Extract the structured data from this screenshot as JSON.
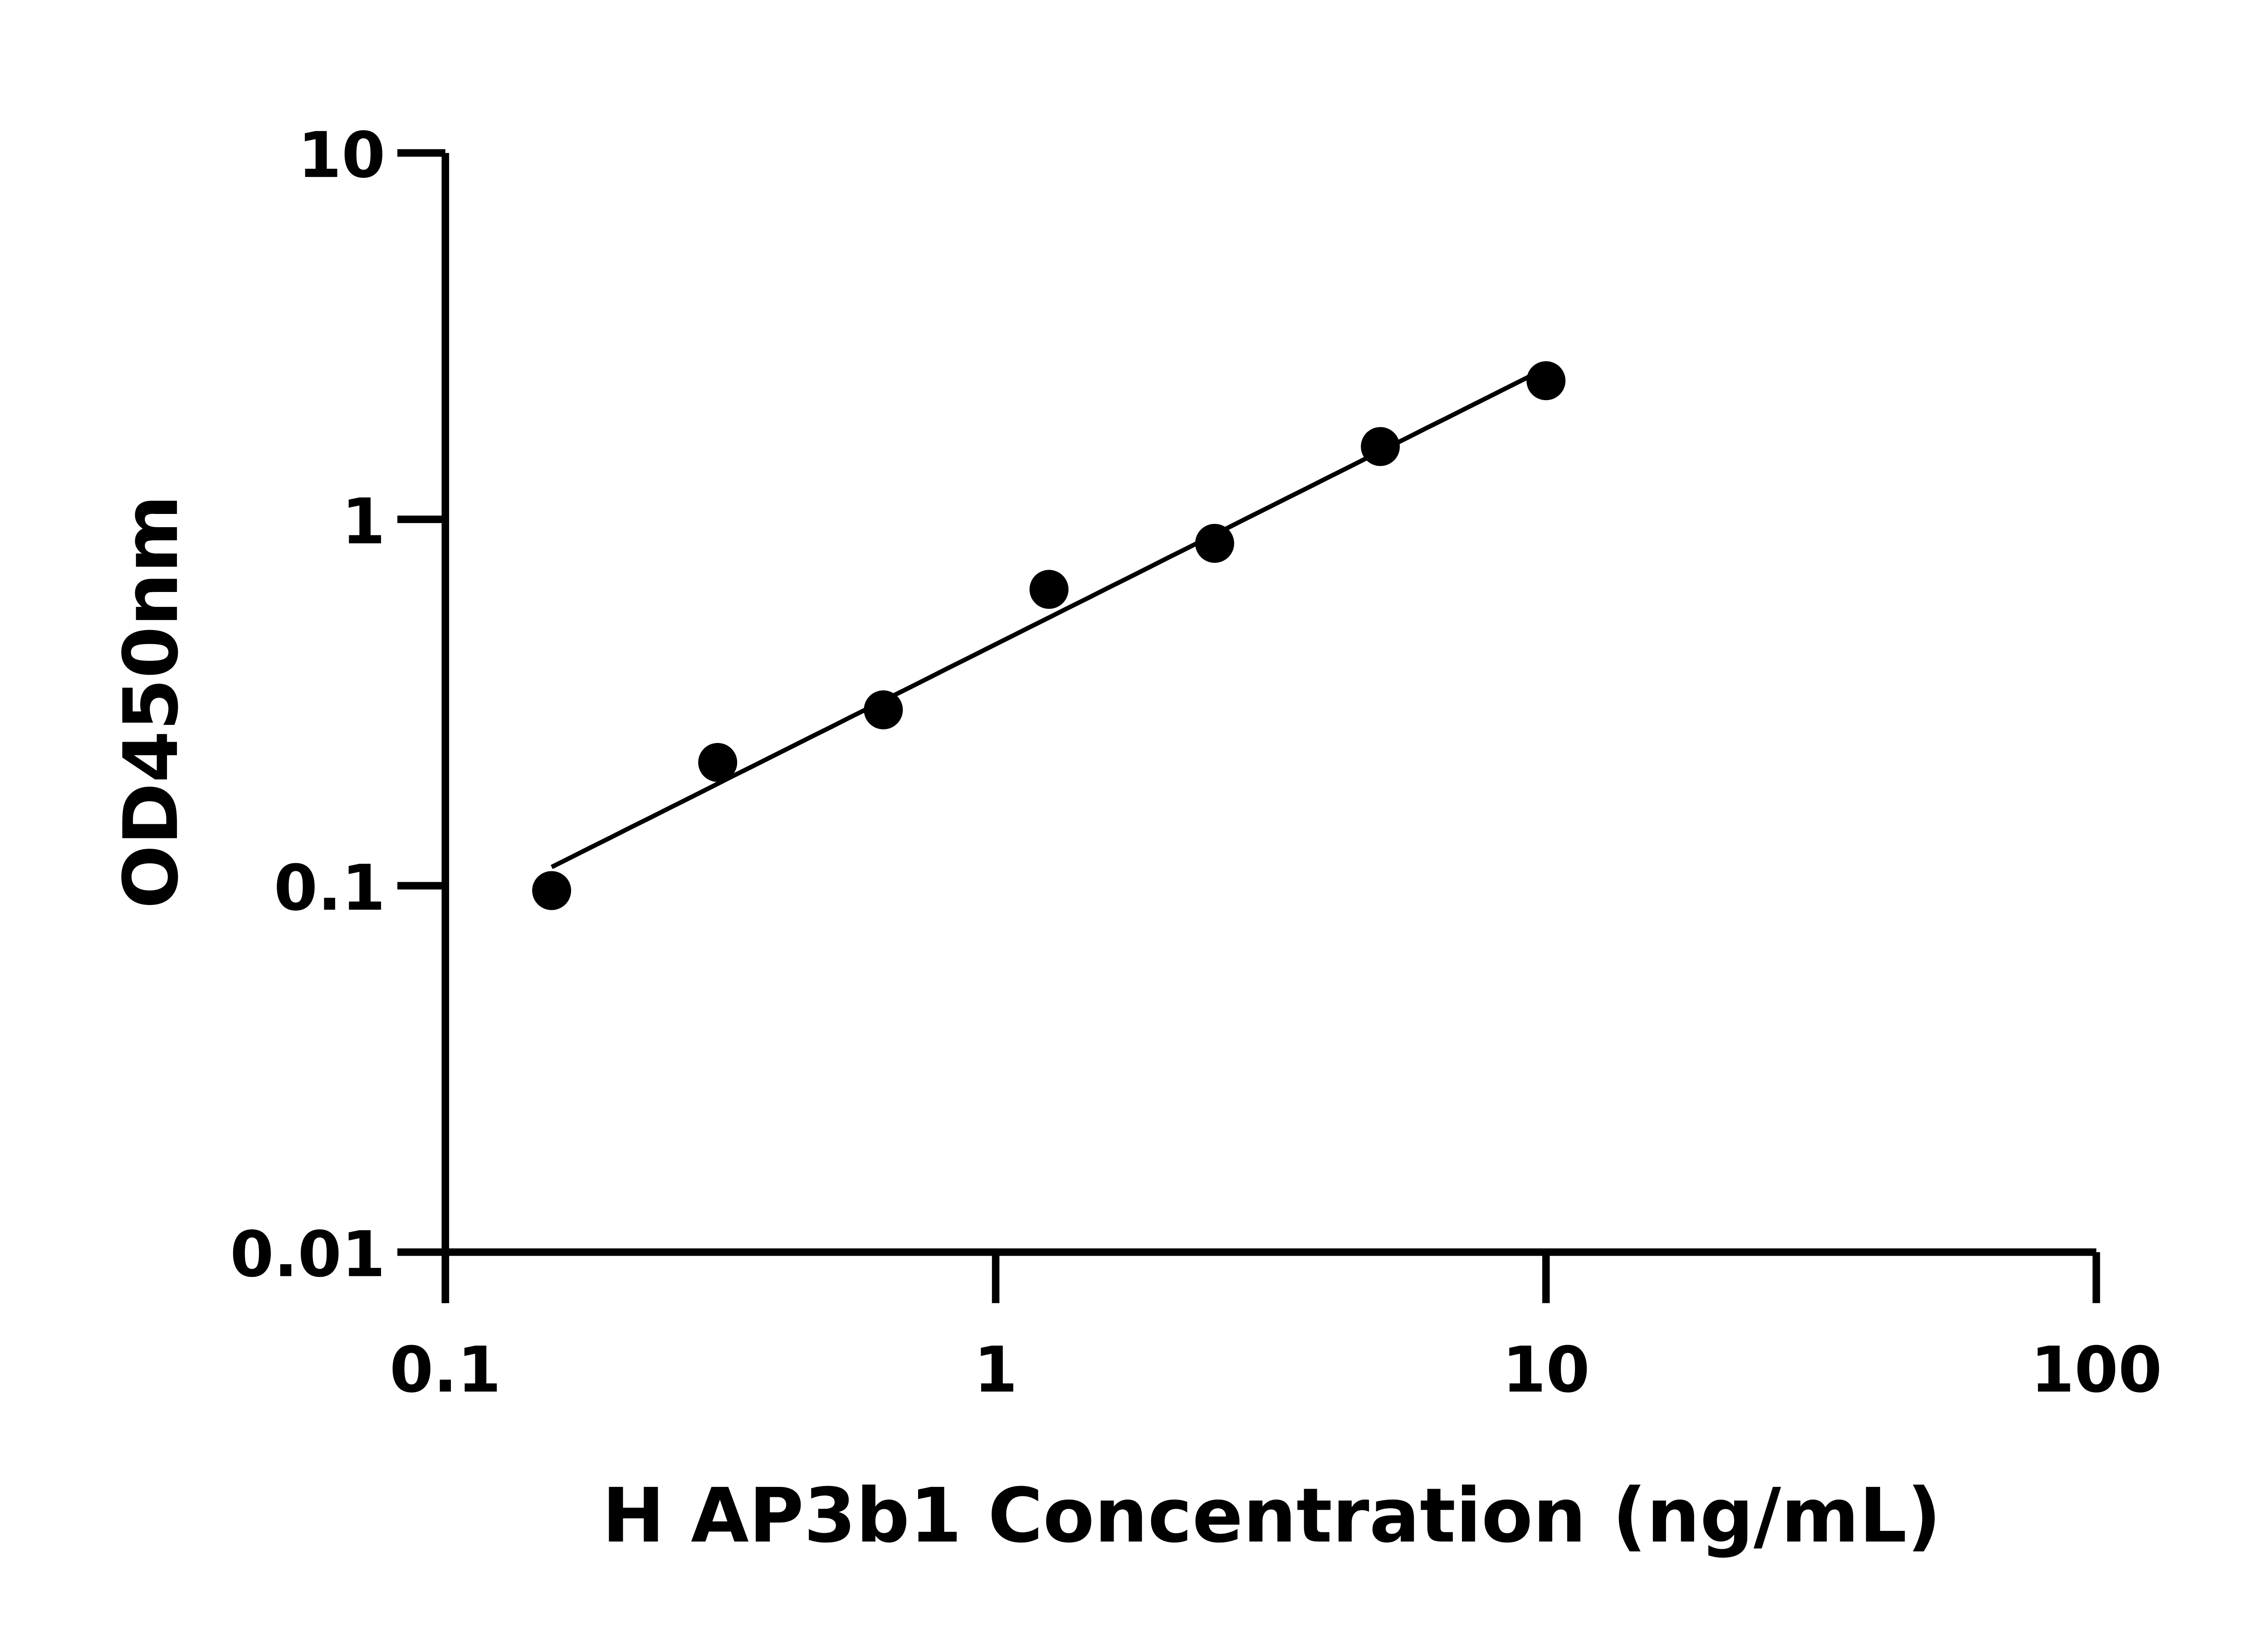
{
  "chart_data": {
    "type": "scatter",
    "title": "",
    "xlabel": "H AP3b1 Concentration (ng/mL)",
    "ylabel": "OD450nm",
    "x_scale": "log",
    "y_scale": "log",
    "xlim": [
      0.1,
      100
    ],
    "ylim": [
      0.01,
      10
    ],
    "x_ticks": [
      "0.1",
      "1",
      "10",
      "100"
    ],
    "y_ticks": [
      "0.01",
      "0.1",
      "1",
      "10"
    ],
    "grid": false,
    "x": [
      0.156,
      0.3125,
      0.625,
      1.25,
      2.5,
      5,
      10
    ],
    "y": [
      0.097,
      0.217,
      0.302,
      0.644,
      0.86,
      1.58,
      2.39
    ],
    "fit_line": true,
    "marker_color": "#000000"
  }
}
